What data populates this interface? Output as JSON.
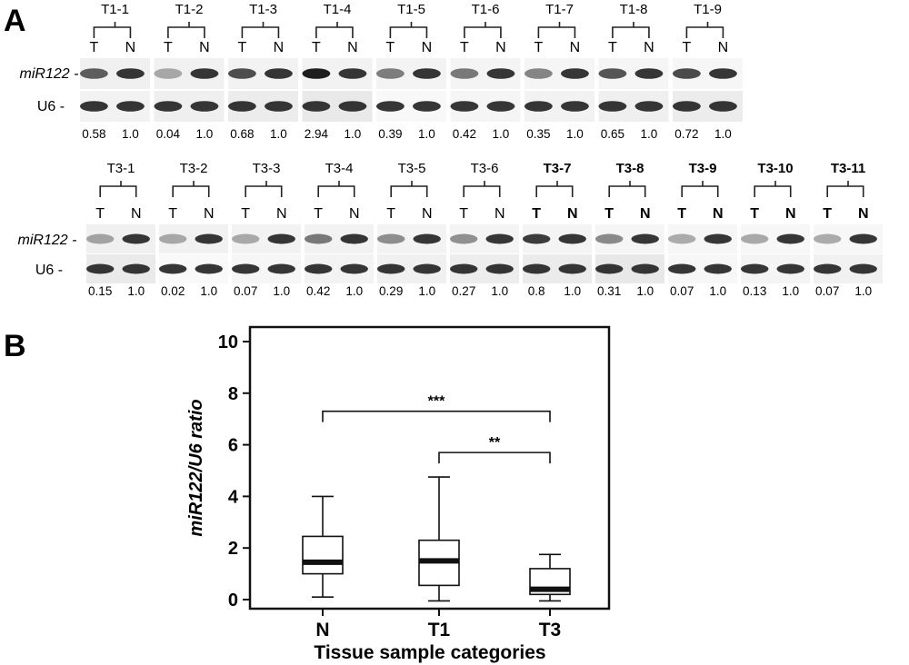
{
  "panel_a": {
    "label": "A",
    "row_labels": {
      "mir": "miR122",
      "u6": "U6"
    },
    "lane_labels": {
      "tumor": "T",
      "normal": "N"
    },
    "rows": [
      {
        "samples": [
          {
            "id": "T1-1",
            "t_ratio": "0.58",
            "n_ratio": "1.0"
          },
          {
            "id": "T1-2",
            "t_ratio": "0.04",
            "n_ratio": "1.0"
          },
          {
            "id": "T1-3",
            "t_ratio": "0.68",
            "n_ratio": "1.0"
          },
          {
            "id": "T1-4",
            "t_ratio": "2.94",
            "n_ratio": "1.0"
          },
          {
            "id": "T1-5",
            "t_ratio": "0.39",
            "n_ratio": "1.0"
          },
          {
            "id": "T1-6",
            "t_ratio": "0.42",
            "n_ratio": "1.0"
          },
          {
            "id": "T1-7",
            "t_ratio": "0.35",
            "n_ratio": "1.0"
          },
          {
            "id": "T1-8",
            "t_ratio": "0.65",
            "n_ratio": "1.0"
          },
          {
            "id": "T1-9",
            "t_ratio": "0.72",
            "n_ratio": "1.0"
          }
        ]
      },
      {
        "samples": [
          {
            "id": "T3-1",
            "t_ratio": "0.15",
            "n_ratio": "1.0"
          },
          {
            "id": "T3-2",
            "t_ratio": "0.02",
            "n_ratio": "1.0"
          },
          {
            "id": "T3-3",
            "t_ratio": "0.07",
            "n_ratio": "1.0"
          },
          {
            "id": "T3-4",
            "t_ratio": "0.42",
            "n_ratio": "1.0"
          },
          {
            "id": "T3-5",
            "t_ratio": "0.29",
            "n_ratio": "1.0"
          },
          {
            "id": "T3-6",
            "t_ratio": "0.27",
            "n_ratio": "1.0"
          },
          {
            "id": "T3-7",
            "t_ratio": "0.8",
            "n_ratio": "1.0"
          },
          {
            "id": "T3-8",
            "t_ratio": "0.31",
            "n_ratio": "1.0"
          },
          {
            "id": "T3-9",
            "t_ratio": "0.07",
            "n_ratio": "1.0"
          },
          {
            "id": "T3-10",
            "t_ratio": "0.13",
            "n_ratio": "1.0"
          },
          {
            "id": "T3-11",
            "t_ratio": "0.07",
            "n_ratio": "1.0"
          }
        ]
      }
    ]
  },
  "panel_b": {
    "label": "B"
  },
  "chart_data": {
    "type": "box",
    "xlabel": "Tissue sample categories",
    "ylabel": "miR122/U6 ratio",
    "ylim": [
      0,
      10
    ],
    "yticks": [
      0,
      2,
      4,
      6,
      8,
      10
    ],
    "categories": [
      "N",
      "T1",
      "T3"
    ],
    "boxes": [
      {
        "category": "N",
        "min": 0.1,
        "q1": 1.0,
        "median": 1.45,
        "q3": 2.45,
        "max": 4.0
      },
      {
        "category": "T1",
        "min": -0.05,
        "q1": 0.55,
        "median": 1.5,
        "q3": 2.3,
        "max": 4.75
      },
      {
        "category": "T3",
        "min": -0.05,
        "q1": 0.2,
        "median": 0.4,
        "q3": 1.2,
        "max": 1.75
      }
    ],
    "significance": [
      {
        "from": "N",
        "to": "T3",
        "label": "***",
        "y": 7.3
      },
      {
        "from": "T1",
        "to": "T3",
        "label": "**",
        "y": 5.7
      }
    ],
    "grid": false,
    "legend": "none"
  }
}
